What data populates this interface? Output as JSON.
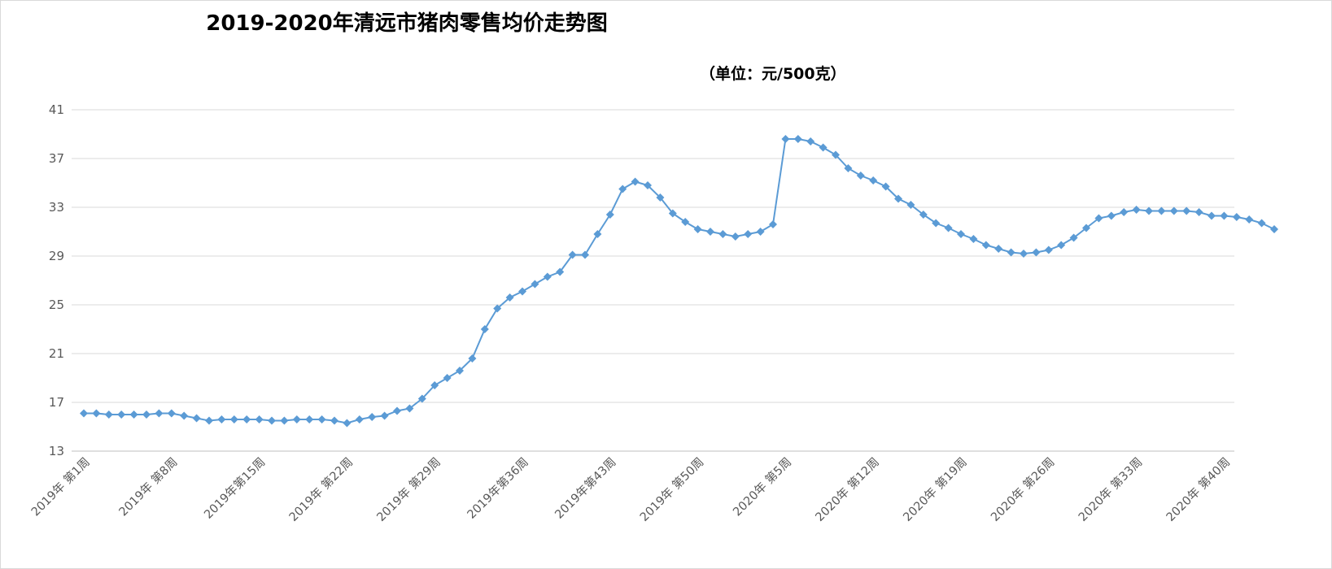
{
  "chart_data": {
    "type": "line",
    "title": "2019-2020年清远市猪肉零售均价走势图",
    "subtitle": "（单位：元/500克）",
    "xlabel": "",
    "ylabel": "",
    "ylim": [
      13,
      41
    ],
    "yticks": [
      13,
      17,
      21,
      25,
      29,
      33,
      37,
      41
    ],
    "grid": true,
    "legend": "none",
    "xtick_labels": [
      {
        "label": "2019年 第1周",
        "index": 0
      },
      {
        "label": "2019年 第8周",
        "index": 7
      },
      {
        "label": "2019年第15周",
        "index": 14
      },
      {
        "label": "2019年 第22周",
        "index": 21
      },
      {
        "label": "2019年 第29周",
        "index": 28
      },
      {
        "label": "2019年第36周",
        "index": 35
      },
      {
        "label": "2019年第43周",
        "index": 42
      },
      {
        "label": "2019年 第50周",
        "index": 49
      },
      {
        "label": "2020年 第5周",
        "index": 56
      },
      {
        "label": "2020年 第12周",
        "index": 63
      },
      {
        "label": "2020年 第19周",
        "index": 70
      },
      {
        "label": "2020年 第26周",
        "index": 77
      },
      {
        "label": "2020年 第33周",
        "index": 84
      },
      {
        "label": "2020年 第40周",
        "index": 91
      }
    ],
    "series": [
      {
        "color": "#5b9bd5",
        "values": [
          16.1,
          16.1,
          16.0,
          16.0,
          16.0,
          16.0,
          16.1,
          16.1,
          15.9,
          15.7,
          15.5,
          15.6,
          15.6,
          15.6,
          15.6,
          15.5,
          15.5,
          15.6,
          15.6,
          15.6,
          15.5,
          15.3,
          15.6,
          15.8,
          15.9,
          16.3,
          16.5,
          17.3,
          18.4,
          19.0,
          19.6,
          20.6,
          23.0,
          24.7,
          25.6,
          26.1,
          26.7,
          27.3,
          27.7,
          29.1,
          29.1,
          30.8,
          32.4,
          34.5,
          35.1,
          34.8,
          33.8,
          32.5,
          31.8,
          31.2,
          31.0,
          30.8,
          30.6,
          30.8,
          31.0,
          31.6,
          38.6,
          38.6,
          38.4,
          37.9,
          37.3,
          36.2,
          35.6,
          35.2,
          34.7,
          33.7,
          33.2,
          32.4,
          31.7,
          31.3,
          30.8,
          30.4,
          29.9,
          29.6,
          29.3,
          29.2,
          29.3,
          29.5,
          29.9,
          30.5,
          31.3,
          32.1,
          32.3,
          32.6,
          32.8,
          32.7,
          32.7,
          32.7,
          32.7,
          32.6,
          32.3,
          32.3,
          32.2,
          32.0,
          31.7,
          31.2
        ]
      }
    ]
  }
}
